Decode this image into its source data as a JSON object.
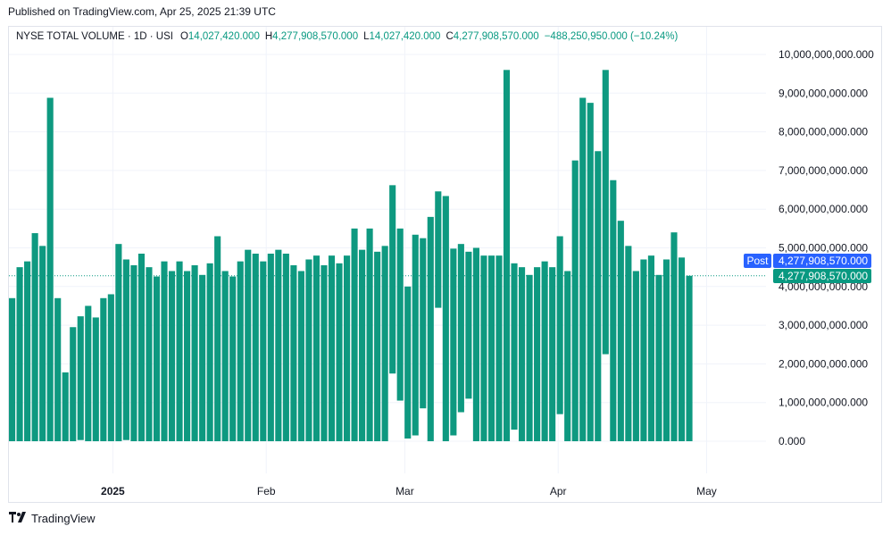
{
  "header": {
    "published": "Published on TradingView.com, Apr 25, 2025 21:39 UTC"
  },
  "legend": {
    "symbol": "NYSE TOTAL VOLUME · 1D · USI",
    "o_label": "O",
    "o_value": "14,027,420.000",
    "h_label": "H",
    "h_value": "4,277,908,570.000",
    "l_label": "L",
    "l_value": "14,027,420.000",
    "c_label": "C",
    "c_value": "4,277,908,570.000",
    "change": "−488,250,950.000 (−10.24%)"
  },
  "colors": {
    "bar": "#0e9980",
    "accent_up": "#089981",
    "post_tag": "#2962ff",
    "price_tag": "#089981",
    "grid": "#f0f3fa",
    "text": "#131722"
  },
  "price_tags": {
    "post_label": "Post",
    "post_value": "4,277,908,570.000",
    "last_value": "4,277,908,570.000"
  },
  "footer": {
    "brand_name": "TradingView",
    "logo_icon": "tradingview-logo-icon"
  },
  "chart_data": {
    "type": "bar",
    "title": "NYSE TOTAL VOLUME",
    "ylim": [
      0,
      10000000000000
    ],
    "y_ticks": [
      0,
      1000000000000,
      2000000000000,
      3000000000000,
      4000000000000,
      5000000000000,
      6000000000000,
      7000000000000,
      8000000000000,
      9000000000000,
      10000000000000
    ],
    "y_tick_labels": [
      "0.000",
      "1,000,000,000.000",
      "2,000,000,000.000",
      "3,000,000,000.000",
      "4,000,000,000.000",
      "5,000,000,000.000",
      "6,000,000,000.000",
      "7,000,000,000.000",
      "8,000,000,000.000",
      "9,000,000,000.000",
      "10,000,000,000.000"
    ],
    "x_tick_labels": [
      "2025",
      "Feb",
      "Mar",
      "Apr",
      "May"
    ],
    "x_tick_dates": [
      "2025-01-01",
      "2025-02-01",
      "2025-03-01",
      "2025-04-01",
      "2025-05-01"
    ],
    "date_range": [
      "2024-12-11",
      "2025-05-13"
    ],
    "last_value": 4277908570000,
    "grid": true,
    "series": [
      {
        "values": [
          [
            3700000000000,
            0
          ],
          [
            4500000000000,
            0
          ],
          [
            4650000000000,
            0
          ],
          [
            5380000000000,
            0
          ],
          [
            5050000000000,
            0
          ],
          [
            8880000000000,
            0
          ],
          [
            3700000000000,
            0
          ],
          [
            1780000000000,
            0
          ],
          [
            2950000000000,
            0
          ],
          [
            3230000000000,
            30000000000
          ],
          [
            3500000000000,
            0
          ],
          [
            3200000000000,
            0
          ],
          [
            3700000000000,
            0
          ],
          [
            3800000000000,
            0
          ],
          [
            5100000000000,
            0
          ],
          [
            4700000000000,
            30000000000
          ],
          [
            4550000000000,
            0
          ],
          [
            4850000000000,
            0
          ],
          [
            4500000000000,
            0
          ],
          [
            4260000000000,
            0
          ],
          [
            4650000000000,
            0
          ],
          [
            4400000000000,
            0
          ],
          [
            4650000000000,
            0
          ],
          [
            4400000000000,
            0
          ],
          [
            4550000000000,
            0
          ],
          [
            4300000000000,
            0
          ],
          [
            4600000000000,
            0
          ],
          [
            5300000000000,
            0
          ],
          [
            4400000000000,
            0
          ],
          [
            4260000000000,
            0
          ],
          [
            4650000000000,
            0
          ],
          [
            4950000000000,
            0
          ],
          [
            4850000000000,
            0
          ],
          [
            4650000000000,
            0
          ],
          [
            4850000000000,
            0
          ],
          [
            4950000000000,
            0
          ],
          [
            4850000000000,
            0
          ],
          [
            4550000000000,
            0
          ],
          [
            4400000000000,
            0
          ],
          [
            4700000000000,
            0
          ],
          [
            4800000000000,
            0
          ],
          [
            4550000000000,
            0
          ],
          [
            4800000000000,
            0
          ],
          [
            4600000000000,
            0
          ],
          [
            4800000000000,
            0
          ],
          [
            5500000000000,
            0
          ],
          [
            4950000000000,
            0
          ],
          [
            5500000000000,
            0
          ],
          [
            4900000000000,
            0
          ],
          [
            5050000000000,
            0
          ],
          [
            6620000000000,
            1750000000000
          ],
          [
            5500000000000,
            1050000000000
          ],
          [
            4000000000000,
            70000000000
          ],
          [
            5340000000000,
            150000000000
          ],
          [
            5250000000000,
            850000000000
          ],
          [
            5800000000000,
            0
          ],
          [
            6460000000000,
            3450000000000
          ],
          [
            6340000000000,
            0
          ],
          [
            4980000000000,
            150000000000
          ],
          [
            5100000000000,
            750000000000
          ],
          [
            4900000000000,
            1100000000000
          ],
          [
            5000000000000,
            0
          ],
          [
            4800000000000,
            0
          ],
          [
            4800000000000,
            0
          ],
          [
            4800000000000,
            0
          ],
          [
            9600000000000,
            0
          ],
          [
            4600000000000,
            300000000000
          ],
          [
            4500000000000,
            0
          ],
          [
            4300000000000,
            0
          ],
          [
            4500000000000,
            0
          ],
          [
            4650000000000,
            0
          ],
          [
            4500000000000,
            0
          ],
          [
            5300000000000,
            700000000000
          ],
          [
            4400000000000,
            0
          ],
          [
            7260000000000,
            0
          ],
          [
            8880000000000,
            0
          ],
          [
            8750000000000,
            0
          ],
          [
            7500000000000,
            0
          ],
          [
            9600000000000,
            2250000000000
          ],
          [
            6750000000000,
            0
          ],
          [
            5700000000000,
            0
          ],
          [
            5050000000000,
            0
          ],
          [
            4400000000000,
            0
          ],
          [
            4700000000000,
            0
          ],
          [
            4800000000000,
            0
          ],
          [
            4300000000000,
            0
          ],
          [
            4700000000000,
            0
          ],
          [
            5400000000000,
            0
          ],
          [
            4750000000000,
            0
          ],
          [
            4277908570000,
            14027420
          ]
        ]
      }
    ]
  }
}
